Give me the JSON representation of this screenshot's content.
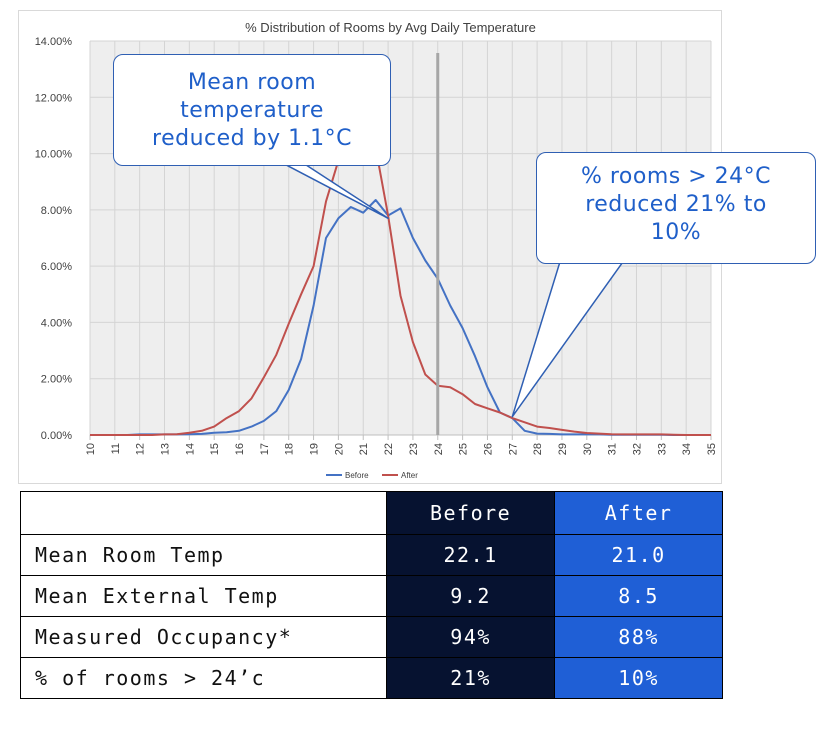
{
  "chart_data": {
    "type": "line",
    "title": "% Distribution of Rooms by Avg Daily Temperature",
    "xlabel": "",
    "ylabel": "",
    "x": [
      10,
      10.5,
      11,
      11.5,
      12,
      12.5,
      13,
      13.5,
      14,
      14.5,
      15,
      15.5,
      16,
      16.5,
      17,
      17.5,
      18,
      18.5,
      19,
      19.5,
      20,
      20.5,
      21,
      21.5,
      22,
      22.5,
      23,
      23.5,
      24,
      24.5,
      25,
      25.5,
      26,
      26.5,
      27,
      27.5,
      28,
      28.5,
      29,
      29.5,
      30,
      30.5,
      31,
      31.5,
      32,
      32.5,
      33,
      33.5,
      34,
      34.5,
      35
    ],
    "x_tick_labels": [
      "10",
      "11",
      "12",
      "13",
      "14",
      "15",
      "16",
      "17",
      "18",
      "19",
      "20",
      "21",
      "22",
      "23",
      "24",
      "25",
      "26",
      "27",
      "28",
      "29",
      "30",
      "31",
      "32",
      "33",
      "34",
      "35"
    ],
    "ylim": [
      0,
      14
    ],
    "y_tick_labels": [
      "0.00%",
      "2.00%",
      "4.00%",
      "6.00%",
      "8.00%",
      "10.00%",
      "12.00%",
      "14.00%"
    ],
    "grid": true,
    "legend_position": "bottom",
    "reference_line_x": 24,
    "series": [
      {
        "name": "Before",
        "color": "#4472c4",
        "values": [
          0,
          0,
          0,
          0,
          0.02,
          0.02,
          0.02,
          0.02,
          0.03,
          0.04,
          0.08,
          0.1,
          0.15,
          0.3,
          0.5,
          0.85,
          1.6,
          2.7,
          4.6,
          7.0,
          7.7,
          8.1,
          7.9,
          8.35,
          7.8,
          8.05,
          7.0,
          6.2,
          5.55,
          4.6,
          3.8,
          2.8,
          1.7,
          0.8,
          0.6,
          0.15,
          0.05,
          0.04,
          0.02,
          0.02,
          0.02,
          0.02,
          0.01,
          0.01,
          0.01,
          0.01,
          0.01,
          0,
          0,
          0,
          0
        ]
      },
      {
        "name": "After",
        "color": "#c0504d",
        "values": [
          0,
          0,
          0,
          0,
          0,
          0,
          0.02,
          0.03,
          0.08,
          0.15,
          0.3,
          0.6,
          0.85,
          1.3,
          2.05,
          2.85,
          3.95,
          5.0,
          6.0,
          8.3,
          9.75,
          11.3,
          11.95,
          10.2,
          7.8,
          4.95,
          3.3,
          2.15,
          1.75,
          1.7,
          1.45,
          1.1,
          0.95,
          0.8,
          0.6,
          0.45,
          0.3,
          0.25,
          0.18,
          0.12,
          0.07,
          0.05,
          0.03,
          0.02,
          0.02,
          0.02,
          0.02,
          0.01,
          0,
          0,
          0
        ]
      }
    ],
    "annotations": [
      {
        "id": "mean",
        "text_lines": [
          "Mean room",
          "temperature",
          "reduced by 1.1°C"
        ],
        "points_to": [
          22,
          7.7
        ]
      },
      {
        "id": "rooms",
        "text_lines": [
          "% rooms > 24°C",
          "reduced 21% to",
          "10%"
        ],
        "points_to": [
          27,
          0.65
        ]
      }
    ]
  },
  "table": {
    "header": [
      "",
      "Before",
      "After"
    ],
    "rows": [
      [
        "Mean Room Temp",
        "22.1",
        "21.0"
      ],
      [
        "Mean External Temp",
        "9.2",
        "8.5"
      ],
      [
        "Measured Occupancy*",
        "94%",
        "88%"
      ],
      [
        "% of rooms > 24’c",
        "21%",
        "10%"
      ]
    ]
  },
  "colors": {
    "before_cell": "#061230",
    "after_cell": "#1f5fd6",
    "callout_text": "#1f5fc9",
    "ref_line": "#a6a6a6",
    "plot_bg": "#eeeeee"
  }
}
